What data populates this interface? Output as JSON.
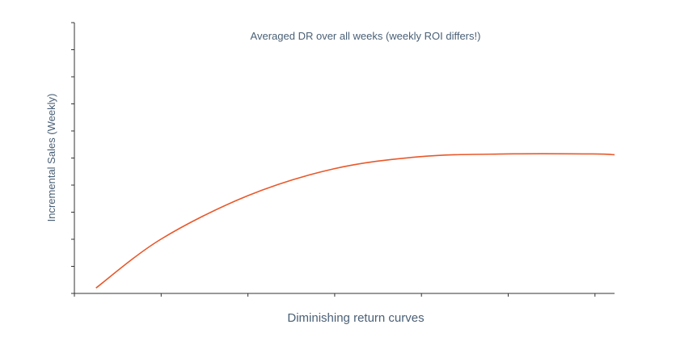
{
  "chart_data": {
    "type": "line",
    "title": "Averaged DR over all weeks (weekly ROI differs!)",
    "xlabel": "Diminishing return curves",
    "ylabel": "Incremental Sales (Weekly)",
    "x": [
      0.25,
      1.0,
      2.0,
      3.0,
      4.0,
      5.0,
      6.0,
      6.25
    ],
    "series": [
      {
        "values": [
          0.2,
          2.0,
          3.6,
          4.6,
          5.05,
          5.15,
          5.15,
          5.12
        ],
        "color": "#e8582a"
      }
    ],
    "xlim": [
      0,
      6.25
    ],
    "ylim": [
      0,
      10
    ],
    "x_ticks": 7,
    "y_ticks": 11,
    "grid": false,
    "legend": "none"
  }
}
